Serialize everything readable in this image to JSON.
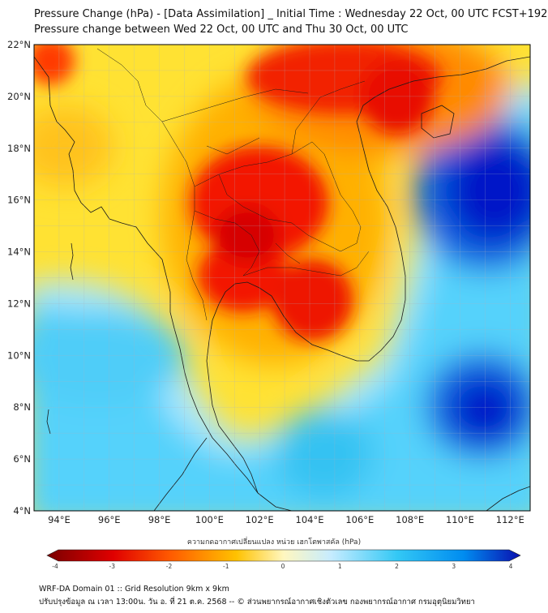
{
  "header": {
    "title_line1": "Pressure Change (hPa) - [Data Assimilation] _ Initial Time : Wednesday 22 Oct, 00 UTC FCST+192",
    "title_line2": "Pressure change between Wed 22 Oct, 00 UTC and Thu 30 Oct, 00 UTC"
  },
  "map": {
    "lat_labels": [
      "22°N",
      "20°N",
      "18°N",
      "16°N",
      "14°N",
      "12°N",
      "10°N",
      "8°N",
      "6°N",
      "4°N"
    ],
    "lon_labels": [
      "94°E",
      "96°E",
      "98°E",
      "100°E",
      "102°E",
      "104°E",
      "106°E",
      "108°E",
      "110°E",
      "112°E"
    ]
  },
  "colorbar": {
    "caption": "ความกดอากาศเปลี่ยนแปลง หน่วย เฮกโตพาสคัล (hPa)",
    "tick_labels": [
      "-4",
      "-3",
      "-2",
      "-1",
      "0",
      "1",
      "2",
      "3",
      "4"
    ],
    "colors": {
      "min": "#7a0000",
      "neg_strong": "#e00000",
      "neg_mid": "#ff5a00",
      "neg_light": "#ffc200",
      "zero": "#fff7c0",
      "pos_light": "#c6ecff",
      "pos_mid": "#33c8f5",
      "pos_strong": "#008cf0",
      "max": "#0a10b0"
    }
  },
  "footer": {
    "line1": "WRF-DA Domain 01 :: Grid Resolution 9km x 9km",
    "line2": "ปรับปรุงข้อมูล ณ เวลา 13:00น. วัน อ. ที่ 21 ต.ค. 2568 -- © ส่วนพยากรณ์อากาศเชิงตัวเลข กองพยากรณ์อากาศ กรมอุตุนิยมวิทยา"
  }
}
